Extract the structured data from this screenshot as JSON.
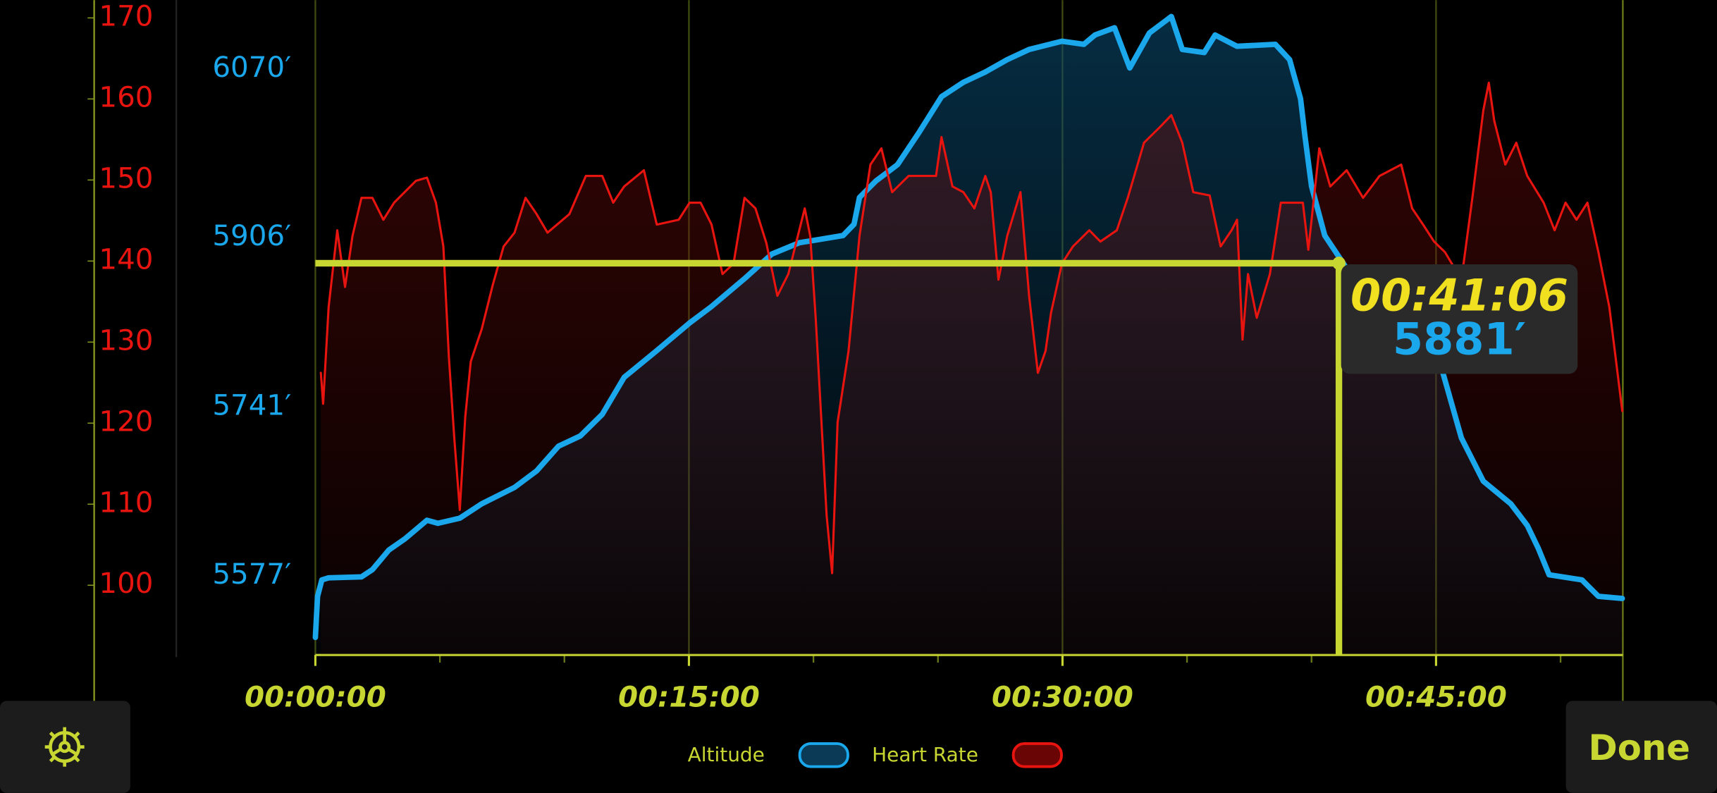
{
  "chart_data": {
    "type": "line",
    "xlim": [
      0,
      52.5
    ],
    "xticks": [
      {
        "value": 0,
        "label": "00:00:00"
      },
      {
        "value": 15,
        "label": "00:15:00"
      },
      {
        "value": 30,
        "label": "00:30:00"
      },
      {
        "value": 45,
        "label": "00:45:00"
      }
    ],
    "x_minor_ticks": [
      5,
      10,
      20,
      25,
      35,
      40,
      50
    ],
    "ylim": [
      91.4,
      172.2
    ],
    "yticks": [
      100,
      110,
      120,
      130,
      140,
      150,
      160,
      170
    ],
    "y2lim": [
      5500,
      6137
    ],
    "y2ticks": [
      {
        "value": 5577,
        "label": "5577′"
      },
      {
        "value": 5741,
        "label": "5741′"
      },
      {
        "value": 5906,
        "label": "5906′"
      },
      {
        "value": 6070,
        "label": "6070′"
      }
    ],
    "grid": true,
    "accent": "#c8d631",
    "series": [
      {
        "name": "Altitude",
        "color": "#1aa7ec",
        "axis": "y2",
        "x": [
          0,
          0.09,
          0.26,
          0.53,
          1.85,
          2.29,
          2.95,
          3.6,
          4.48,
          4.92,
          5.8,
          6.68,
          8.0,
          8.88,
          9.76,
          10.64,
          11.52,
          12.4,
          13.71,
          15.03,
          15.91,
          17.23,
          18.33,
          19.43,
          21.19,
          21.63,
          21.85,
          22.51,
          23.38,
          24.26,
          25.14,
          26.02,
          26.9,
          27.78,
          28.66,
          29.98,
          30.86,
          31.3,
          32.09,
          32.7,
          33.49,
          34.37,
          34.81,
          35.69,
          36.13,
          37.01,
          38.55,
          39.12,
          39.56,
          39.74,
          40.0,
          40.53,
          41.41,
          42.73,
          44.04,
          45.14,
          46.02,
          46.9,
          48.0,
          48.66,
          49.1,
          49.54,
          50.86,
          51.52,
          52.48
        ],
        "values": [
          5517,
          5557,
          5573,
          5575,
          5576,
          5583,
          5602,
          5613,
          5631,
          5628,
          5633,
          5647,
          5663,
          5679,
          5703,
          5713,
          5734,
          5770,
          5796,
          5823,
          5839,
          5866,
          5890,
          5901,
          5908,
          5919,
          5945,
          5961,
          5977,
          6009,
          6043,
          6057,
          6067,
          6079,
          6089,
          6097,
          6094,
          6103,
          6110,
          6071,
          6105,
          6121,
          6089,
          6086,
          6103,
          6092,
          6094,
          6079,
          6041,
          6004,
          5956,
          5908,
          5876,
          5866,
          5844,
          5786,
          5711,
          5669,
          5647,
          5626,
          5604,
          5578,
          5573,
          5557,
          5555
        ]
      },
      {
        "name": "Heart Rate",
        "color": "#e8140f",
        "x": [
          0.22,
          0.31,
          0.53,
          0.88,
          1.19,
          1.49,
          1.85,
          2.29,
          2.73,
          3.16,
          4.04,
          4.48,
          4.84,
          5.14,
          5.36,
          5.58,
          5.8,
          6.02,
          6.24,
          6.68,
          7.12,
          7.56,
          8.0,
          8.44,
          8.88,
          9.32,
          10.2,
          10.86,
          11.52,
          11.96,
          12.4,
          13.19,
          13.71,
          14.59,
          15.03,
          15.47,
          15.91,
          16.35,
          16.79,
          17.23,
          17.67,
          18.11,
          18.55,
          18.99,
          19.65,
          19.87,
          20.09,
          20.53,
          20.75,
          20.97,
          21.41,
          21.85,
          22.29,
          22.73,
          23.16,
          23.82,
          24.92,
          25.14,
          25.58,
          26.02,
          26.46,
          26.9,
          27.12,
          27.43,
          27.78,
          28.31,
          28.66,
          29.01,
          29.32,
          29.54,
          29.98,
          30.42,
          31.08,
          31.52,
          32.18,
          32.62,
          33.27,
          33.93,
          34.37,
          34.81,
          35.25,
          35.91,
          36.35,
          36.79,
          37.01,
          37.23,
          37.45,
          37.8,
          38.33,
          38.77,
          39.65,
          39.87,
          40.31,
          40.75,
          41.41,
          42.07,
          42.73,
          43.6,
          44.04,
          44.48,
          44.92,
          45.36,
          46.02,
          46.46,
          46.9,
          47.12,
          47.34,
          47.78,
          48.22,
          48.66,
          49.32,
          49.76,
          50.2,
          50.64,
          51.08,
          51.52,
          51.96,
          52.48
        ],
        "values": [
          126.2,
          122.4,
          134.3,
          143.8,
          136.8,
          143.1,
          147.8,
          147.8,
          145.1,
          147.2,
          149.9,
          150.3,
          147.2,
          141.8,
          128.2,
          118.1,
          109.3,
          120.8,
          127.6,
          131.6,
          137.0,
          141.8,
          143.5,
          147.8,
          145.8,
          143.5,
          145.8,
          150.5,
          150.5,
          147.2,
          149.2,
          151.2,
          144.5,
          145.1,
          147.2,
          147.2,
          144.5,
          138.4,
          139.7,
          147.8,
          146.5,
          142.2,
          135.7,
          138.4,
          146.5,
          143.1,
          133.0,
          108.6,
          101.5,
          120.1,
          128.9,
          143.1,
          151.9,
          153.9,
          148.5,
          150.5,
          150.5,
          155.3,
          149.2,
          148.5,
          146.5,
          150.5,
          148.5,
          137.7,
          143.1,
          148.5,
          135.7,
          126.2,
          128.9,
          133.6,
          139.7,
          141.8,
          143.8,
          142.4,
          143.8,
          147.8,
          154.6,
          156.6,
          158.0,
          154.6,
          148.5,
          148.1,
          141.8,
          143.8,
          145.1,
          130.3,
          138.4,
          133.0,
          138.4,
          147.2,
          147.2,
          141.4,
          153.9,
          149.2,
          151.2,
          147.8,
          150.5,
          151.9,
          146.5,
          144.5,
          142.4,
          141.1,
          137.7,
          147.8,
          158.6,
          162.0,
          157.3,
          151.9,
          154.6,
          150.5,
          147.2,
          143.8,
          147.2,
          145.1,
          147.2,
          141.1,
          134.3,
          121.5
        ]
      }
    ],
    "cursor": {
      "time": 41.1,
      "altitude": 5881,
      "time_label": "00:41:06",
      "altitude_label": "5881′"
    }
  },
  "buttons": {
    "done": "Done"
  }
}
